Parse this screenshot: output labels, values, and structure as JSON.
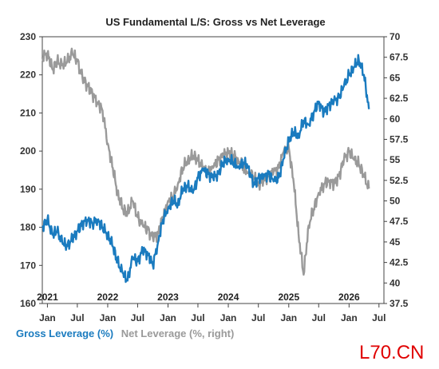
{
  "chart_data": {
    "type": "line",
    "title": "US Fundamental L/S: Gross vs Net Leverage",
    "left_axis": {
      "ylim": [
        160,
        230
      ],
      "ticks": [
        160,
        170,
        180,
        190,
        200,
        210,
        220,
        230
      ]
    },
    "right_axis": {
      "ylim": [
        37.5,
        70
      ],
      "ticks": [
        "37.5",
        "40",
        "42.5",
        "45",
        "47.5",
        "50",
        "52.5",
        "55",
        "57.5",
        "60",
        "62.5",
        "65",
        "67.5",
        "70"
      ]
    },
    "x_range": [
      "2020-12-01",
      "2026-07-31"
    ],
    "month_ticks": [
      {
        "date": "2021-01-01",
        "label": "Jan"
      },
      {
        "date": "2021-07-01",
        "label": "Jul"
      },
      {
        "date": "2022-01-01",
        "label": "Jan"
      },
      {
        "date": "2022-07-01",
        "label": "Jul"
      },
      {
        "date": "2023-01-01",
        "label": "Jan"
      },
      {
        "date": "2023-07-01",
        "label": "Jul"
      },
      {
        "date": "2024-01-01",
        "label": "Jan"
      },
      {
        "date": "2024-07-01",
        "label": "Jul"
      },
      {
        "date": "2025-01-01",
        "label": "Jan"
      },
      {
        "date": "2025-07-01",
        "label": "Jul"
      },
      {
        "date": "2026-01-01",
        "label": "Jan"
      },
      {
        "date": "2026-07-01",
        "label": "Jul"
      }
    ],
    "year_labels": [
      {
        "date": "2021-01-01",
        "label": "2021"
      },
      {
        "date": "2022-01-01",
        "label": "2022"
      },
      {
        "date": "2023-01-01",
        "label": "2023"
      },
      {
        "date": "2024-01-01",
        "label": "2024"
      },
      {
        "date": "2025-01-01",
        "label": "2025"
      },
      {
        "date": "2026-01-01",
        "label": "2026"
      }
    ],
    "series": [
      {
        "name": "Gross Leverage (%)",
        "axis": "left",
        "color": "#1a7bbf",
        "x": [
          "2020-12-01",
          "2021-01-01",
          "2021-02-01",
          "2021-03-01",
          "2021-04-01",
          "2021-05-01",
          "2021-06-01",
          "2021-07-01",
          "2021-08-01",
          "2021-09-01",
          "2021-10-01",
          "2021-11-01",
          "2021-12-01",
          "2022-01-01",
          "2022-02-01",
          "2022-03-01",
          "2022-04-01",
          "2022-05-01",
          "2022-06-01",
          "2022-07-01",
          "2022-08-01",
          "2022-09-01",
          "2022-10-01",
          "2022-11-01",
          "2022-12-01",
          "2023-01-01",
          "2023-02-01",
          "2023-03-01",
          "2023-04-01",
          "2023-05-01",
          "2023-06-01",
          "2023-07-01",
          "2023-08-01",
          "2023-09-01",
          "2023-10-01",
          "2023-11-01",
          "2023-12-01",
          "2024-01-01",
          "2024-02-01",
          "2024-03-01",
          "2024-04-01",
          "2024-05-01",
          "2024-06-01",
          "2024-07-01",
          "2024-08-01",
          "2024-09-01",
          "2024-10-01",
          "2024-11-01",
          "2024-12-01",
          "2025-01-01",
          "2025-02-01",
          "2025-03-01",
          "2025-04-01",
          "2025-05-01",
          "2025-06-01",
          "2025-07-01",
          "2025-08-01",
          "2025-09-01",
          "2025-10-01",
          "2025-11-01",
          "2025-12-01",
          "2026-01-01",
          "2026-02-01",
          "2026-03-01",
          "2026-04-01",
          "2026-05-01"
        ],
        "values": [
          180,
          182,
          178,
          179,
          176,
          175,
          177,
          179,
          181,
          182,
          181,
          182,
          180,
          178,
          175,
          171,
          168,
          166,
          172,
          171,
          174,
          173,
          170,
          176,
          182,
          185,
          187,
          186,
          190,
          191,
          189,
          193,
          195,
          194,
          193,
          194,
          197,
          198,
          197,
          196,
          197,
          196,
          191,
          193,
          193,
          194,
          192,
          193,
          198,
          203,
          205,
          204,
          208,
          207,
          210,
          213,
          210,
          212,
          213,
          214,
          217,
          220,
          222,
          224,
          220,
          211
        ]
      },
      {
        "name": "Net Leverage (%, right)",
        "axis": "right",
        "color": "#9a9a9a",
        "x": [
          "2020-12-01",
          "2021-01-01",
          "2021-02-01",
          "2021-03-01",
          "2021-04-01",
          "2021-05-01",
          "2021-06-01",
          "2021-07-01",
          "2021-08-01",
          "2021-09-01",
          "2021-10-01",
          "2021-11-01",
          "2021-12-01",
          "2022-01-01",
          "2022-02-01",
          "2022-03-01",
          "2022-04-01",
          "2022-05-01",
          "2022-06-01",
          "2022-07-01",
          "2022-08-01",
          "2022-09-01",
          "2022-10-01",
          "2022-11-01",
          "2022-12-01",
          "2023-01-01",
          "2023-02-01",
          "2023-03-01",
          "2023-04-01",
          "2023-05-01",
          "2023-06-01",
          "2023-07-01",
          "2023-08-01",
          "2023-09-01",
          "2023-10-01",
          "2023-11-01",
          "2023-12-01",
          "2024-01-01",
          "2024-02-01",
          "2024-03-01",
          "2024-04-01",
          "2024-05-01",
          "2024-06-01",
          "2024-07-01",
          "2024-08-01",
          "2024-09-01",
          "2024-10-01",
          "2024-11-01",
          "2024-12-01",
          "2025-01-01",
          "2025-02-01",
          "2025-03-01",
          "2025-04-01",
          "2025-05-01",
          "2025-06-01",
          "2025-07-01",
          "2025-08-01",
          "2025-09-01",
          "2025-10-01",
          "2025-11-01",
          "2025-12-01",
          "2026-01-01",
          "2026-02-01",
          "2026-03-01",
          "2026-04-01",
          "2026-05-01"
        ],
        "values": [
          67.5,
          68,
          66,
          67,
          66.5,
          67,
          68,
          67,
          65,
          64,
          63,
          62,
          61,
          57,
          54,
          51,
          49,
          48.5,
          50,
          48,
          47,
          46.5,
          45.5,
          46,
          48,
          50,
          50.5,
          52,
          54,
          55,
          55.5,
          55,
          54,
          53.5,
          54,
          55,
          55.5,
          56,
          55.5,
          55,
          54,
          53.5,
          53,
          52,
          52.5,
          53,
          53.5,
          54,
          56,
          56.5,
          52,
          46,
          41,
          47,
          49,
          51,
          52,
          52.5,
          52,
          53,
          55,
          56,
          55,
          54.5,
          53,
          51.5
        ]
      }
    ]
  },
  "legend": {
    "gross_label": "Gross Leverage (%)",
    "net_label": "Net Leverage (%, right)"
  },
  "watermark": "L70.CN",
  "colors": {
    "gross": "#1a7bbf",
    "net": "#9a9a9a"
  }
}
